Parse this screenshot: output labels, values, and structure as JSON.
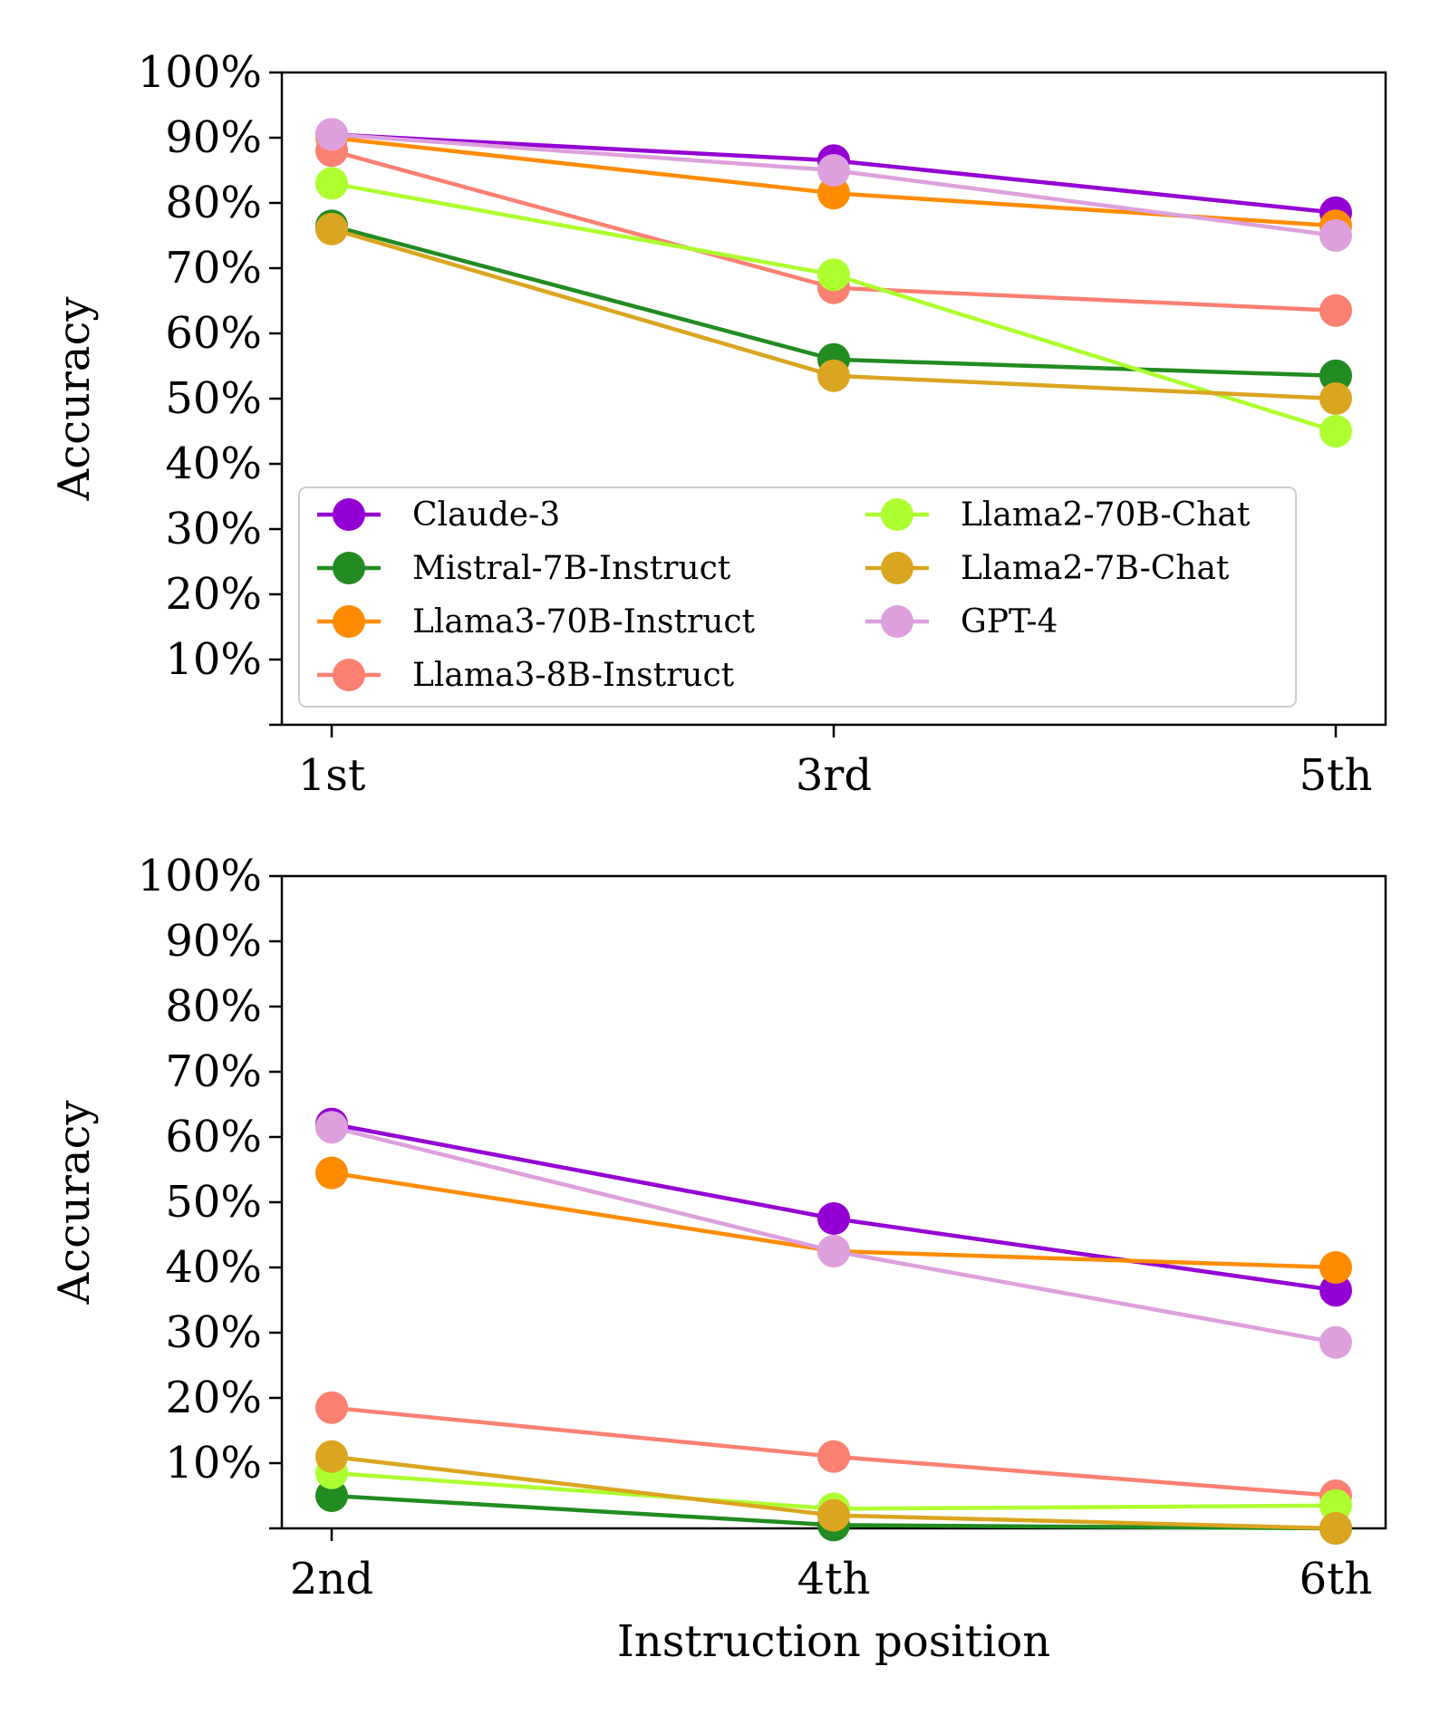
{
  "series_styles": [
    {
      "name": "Claude-3",
      "color": "#9400D3"
    },
    {
      "name": "Mistral-7B-Instruct",
      "color": "#228B22"
    },
    {
      "name": "Llama3-70B-Instruct",
      "color": "#FF8C00"
    },
    {
      "name": "Llama3-8B-Instruct",
      "color": "#FA8072"
    },
    {
      "name": "Llama2-70B-Chat",
      "color": "#ADFF2F"
    },
    {
      "name": "Llama2-7B-Chat",
      "color": "#DAA520"
    },
    {
      "name": "GPT-4",
      "color": "#DDA0DD"
    }
  ],
  "chart_data": [
    {
      "type": "line",
      "categories": [
        "1st",
        "3rd",
        "5th"
      ],
      "xlabel": "",
      "ylabel": "Accuracy",
      "ylim": [
        0,
        100
      ],
      "yticks": [
        10,
        20,
        30,
        40,
        50,
        60,
        70,
        80,
        90,
        100
      ],
      "ytick_labels": [
        "10%",
        "20%",
        "30%",
        "40%",
        "50%",
        "60%",
        "70%",
        "80%",
        "90%",
        "100%"
      ],
      "grid": false,
      "legend": "lower-left",
      "series": [
        {
          "name": "Claude-3",
          "values": [
            90.5,
            86.5,
            78.5
          ]
        },
        {
          "name": "Mistral-7B-Instruct",
          "values": [
            76.5,
            56,
            53.5
          ]
        },
        {
          "name": "Llama3-70B-Instruct",
          "values": [
            90,
            81.5,
            76.5
          ]
        },
        {
          "name": "Llama3-8B-Instruct",
          "values": [
            88,
            67,
            63.5
          ]
        },
        {
          "name": "Llama2-70B-Chat",
          "values": [
            83,
            69,
            45
          ]
        },
        {
          "name": "Llama2-7B-Chat",
          "values": [
            76,
            53.5,
            50
          ]
        },
        {
          "name": "GPT-4",
          "values": [
            90.5,
            85,
            75
          ]
        }
      ]
    },
    {
      "type": "line",
      "categories": [
        "2nd",
        "4th",
        "6th"
      ],
      "xlabel": "Instruction position",
      "ylabel": "Accuracy",
      "ylim": [
        0,
        100
      ],
      "yticks": [
        10,
        20,
        30,
        40,
        50,
        60,
        70,
        80,
        90,
        100
      ],
      "ytick_labels": [
        "10%",
        "20%",
        "30%",
        "40%",
        "50%",
        "60%",
        "70%",
        "80%",
        "90%",
        "100%"
      ],
      "grid": false,
      "legend": "none",
      "series": [
        {
          "name": "Claude-3",
          "values": [
            62,
            47.5,
            36.5
          ]
        },
        {
          "name": "Mistral-7B-Instruct",
          "values": [
            5,
            0.5,
            0
          ]
        },
        {
          "name": "Llama3-70B-Instruct",
          "values": [
            54.5,
            42.5,
            40
          ]
        },
        {
          "name": "Llama3-8B-Instruct",
          "values": [
            18.5,
            11,
            5
          ]
        },
        {
          "name": "Llama2-70B-Chat",
          "values": [
            8.5,
            3,
            3.5
          ]
        },
        {
          "name": "Llama2-7B-Chat",
          "values": [
            11,
            2,
            0
          ]
        },
        {
          "name": "GPT-4",
          "values": [
            61.5,
            42.5,
            28.5
          ]
        }
      ]
    }
  ]
}
